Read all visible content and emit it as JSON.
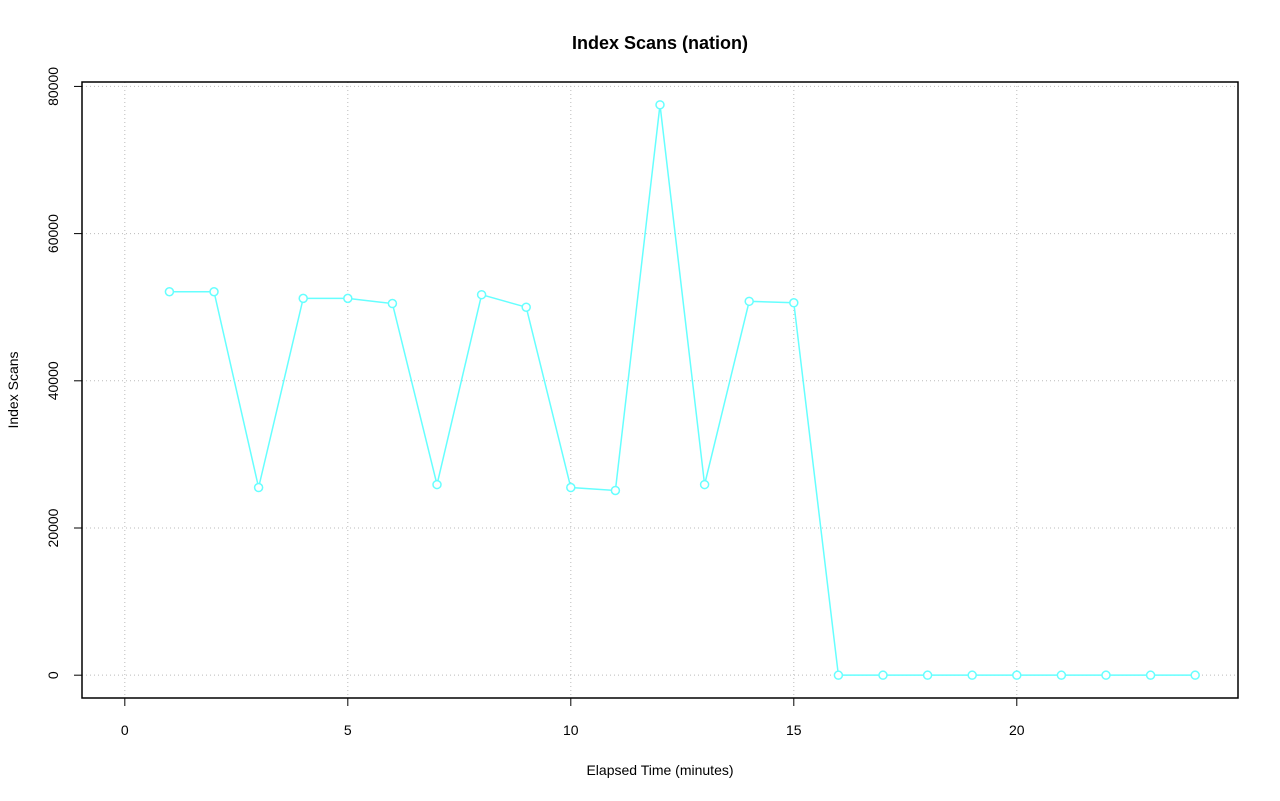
{
  "chart_data": {
    "type": "line",
    "title": "Index Scans (nation)",
    "xlabel": "Elapsed Time (minutes)",
    "ylabel": "Index Scans",
    "x": [
      1,
      2,
      3,
      4,
      5,
      6,
      7,
      8,
      9,
      10,
      11,
      12,
      13,
      14,
      15,
      16,
      17,
      18,
      19,
      20,
      21,
      22,
      23,
      24
    ],
    "series": [
      {
        "name": "Index Scans",
        "color": "#66ffff",
        "values": [
          52100,
          52100,
          25500,
          51200,
          51200,
          50500,
          25900,
          51700,
          50000,
          25500,
          25100,
          77500,
          25900,
          50800,
          50600,
          0,
          0,
          0,
          0,
          0,
          0,
          0,
          0,
          0
        ]
      }
    ],
    "xlim": [
      -0.96,
      24.96
    ],
    "ylim": [
      -3100,
      80600
    ],
    "xticks": [
      0,
      5,
      10,
      15,
      20
    ],
    "yticks": [
      0,
      20000,
      40000,
      60000,
      80000
    ],
    "grid": true
  }
}
